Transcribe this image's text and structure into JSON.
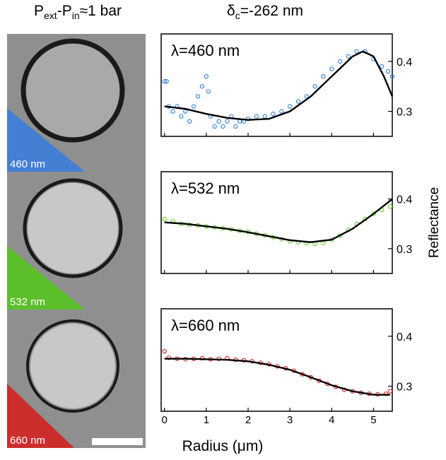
{
  "header": {
    "left": [
      "P",
      "ext",
      "-P",
      "in",
      "≈1 bar"
    ],
    "right": [
      "δ",
      "c",
      "=-262 nm"
    ]
  },
  "images": [
    {
      "label": "460 nm",
      "color": "#3d7ddb"
    },
    {
      "label": "532 nm",
      "color": "#55c41f"
    },
    {
      "label": "660 nm",
      "color": "#d32222"
    }
  ],
  "x_label": "Radius (μm)",
  "y_label": "Reflectance",
  "chart_data": [
    {
      "type": "scatter",
      "annotation": "λ=460 nm",
      "xlim": [
        -0.08,
        5.45
      ],
      "xticks": [
        0,
        1,
        2,
        3,
        4,
        5
      ],
      "ylim": [
        0.25,
        0.455
      ],
      "yticks": [
        0.3,
        0.4
      ],
      "series": [
        {
          "color": "#2a7fd8",
          "x": [
            0.0,
            0.05,
            0.1,
            0.2,
            0.3,
            0.4,
            0.5,
            0.6,
            0.7,
            0.8,
            0.9,
            1.0,
            1.05,
            1.1,
            1.2,
            1.3,
            1.4,
            1.5,
            1.6,
            1.7,
            1.8,
            1.9,
            2.0,
            2.2,
            2.4,
            2.6,
            2.8,
            3.0,
            3.2,
            3.4,
            3.6,
            3.8,
            4.0,
            4.2,
            4.4,
            4.6,
            4.8,
            5.0,
            5.2,
            5.35,
            5.45
          ],
          "values": [
            0.36,
            0.36,
            0.31,
            0.3,
            0.31,
            0.29,
            0.3,
            0.28,
            0.31,
            0.33,
            0.35,
            0.37,
            0.34,
            0.29,
            0.27,
            0.28,
            0.27,
            0.28,
            0.29,
            0.27,
            0.28,
            0.28,
            0.285,
            0.29,
            0.29,
            0.295,
            0.3,
            0.31,
            0.32,
            0.33,
            0.35,
            0.37,
            0.385,
            0.4,
            0.41,
            0.42,
            0.42,
            0.405,
            0.39,
            0.38,
            0.37
          ]
        }
      ],
      "fit": {
        "color": "#000000",
        "x": [
          0,
          0.5,
          1,
          1.5,
          2,
          2.5,
          3,
          3.5,
          4,
          4.5,
          4.75,
          5,
          5.25,
          5.45
        ],
        "values": [
          0.31,
          0.305,
          0.295,
          0.287,
          0.283,
          0.285,
          0.3,
          0.33,
          0.37,
          0.41,
          0.42,
          0.41,
          0.37,
          0.33
        ]
      }
    },
    {
      "type": "scatter",
      "annotation": "λ=532 nm",
      "xlim": [
        -0.08,
        5.45
      ],
      "xticks": [
        0,
        1,
        2,
        3,
        4,
        5
      ],
      "ylim": [
        0.25,
        0.455
      ],
      "yticks": [
        0.3,
        0.4
      ],
      "series": [
        {
          "color": "#5fd420",
          "x": [
            0.0,
            0.2,
            0.4,
            0.6,
            0.8,
            1.0,
            1.2,
            1.4,
            1.6,
            1.8,
            2.0,
            2.2,
            2.4,
            2.6,
            2.8,
            3.0,
            3.2,
            3.4,
            3.6,
            3.8,
            4.0,
            4.2,
            4.4,
            4.6,
            4.8,
            5.0,
            5.2,
            5.4
          ],
          "values": [
            0.36,
            0.355,
            0.35,
            0.348,
            0.347,
            0.345,
            0.343,
            0.341,
            0.339,
            0.336,
            0.334,
            0.33,
            0.327,
            0.323,
            0.319,
            0.315,
            0.313,
            0.311,
            0.31,
            0.312,
            0.318,
            0.326,
            0.338,
            0.35,
            0.36,
            0.37,
            0.378,
            0.385
          ]
        }
      ],
      "fit": {
        "color": "#000000",
        "x": [
          0,
          0.5,
          1,
          1.5,
          2,
          2.5,
          3,
          3.5,
          4,
          4.5,
          5,
          5.45
        ],
        "values": [
          0.353,
          0.35,
          0.345,
          0.34,
          0.333,
          0.325,
          0.317,
          0.313,
          0.318,
          0.34,
          0.37,
          0.4
        ]
      }
    },
    {
      "type": "scatter",
      "annotation": "λ=660 nm",
      "xlim": [
        -0.08,
        5.45
      ],
      "xticks": [
        0,
        1,
        2,
        3,
        4,
        5
      ],
      "ylim": [
        0.25,
        0.455
      ],
      "yticks": [
        0.3,
        0.4
      ],
      "series": [
        {
          "color": "#e01a1a",
          "x": [
            0.0,
            0.1,
            0.3,
            0.5,
            0.7,
            0.9,
            1.1,
            1.3,
            1.5,
            1.7,
            1.9,
            2.1,
            2.3,
            2.5,
            2.7,
            2.9,
            3.1,
            3.3,
            3.5,
            3.7,
            3.9,
            4.1,
            4.3,
            4.5,
            4.7,
            4.9,
            5.1,
            5.3,
            5.4
          ],
          "values": [
            0.37,
            0.357,
            0.355,
            0.354,
            0.355,
            0.356,
            0.354,
            0.355,
            0.356,
            0.353,
            0.352,
            0.35,
            0.347,
            0.344,
            0.34,
            0.336,
            0.331,
            0.324,
            0.318,
            0.311,
            0.305,
            0.299,
            0.293,
            0.29,
            0.287,
            0.285,
            0.284,
            0.285,
            0.29
          ]
        }
      ],
      "fit": {
        "color": "#000000",
        "x": [
          0,
          0.5,
          1,
          1.5,
          2,
          2.5,
          3,
          3.5,
          4,
          4.5,
          5,
          5.4
        ],
        "values": [
          0.355,
          0.355,
          0.354,
          0.353,
          0.35,
          0.343,
          0.333,
          0.318,
          0.302,
          0.29,
          0.283,
          0.283
        ]
      }
    }
  ]
}
